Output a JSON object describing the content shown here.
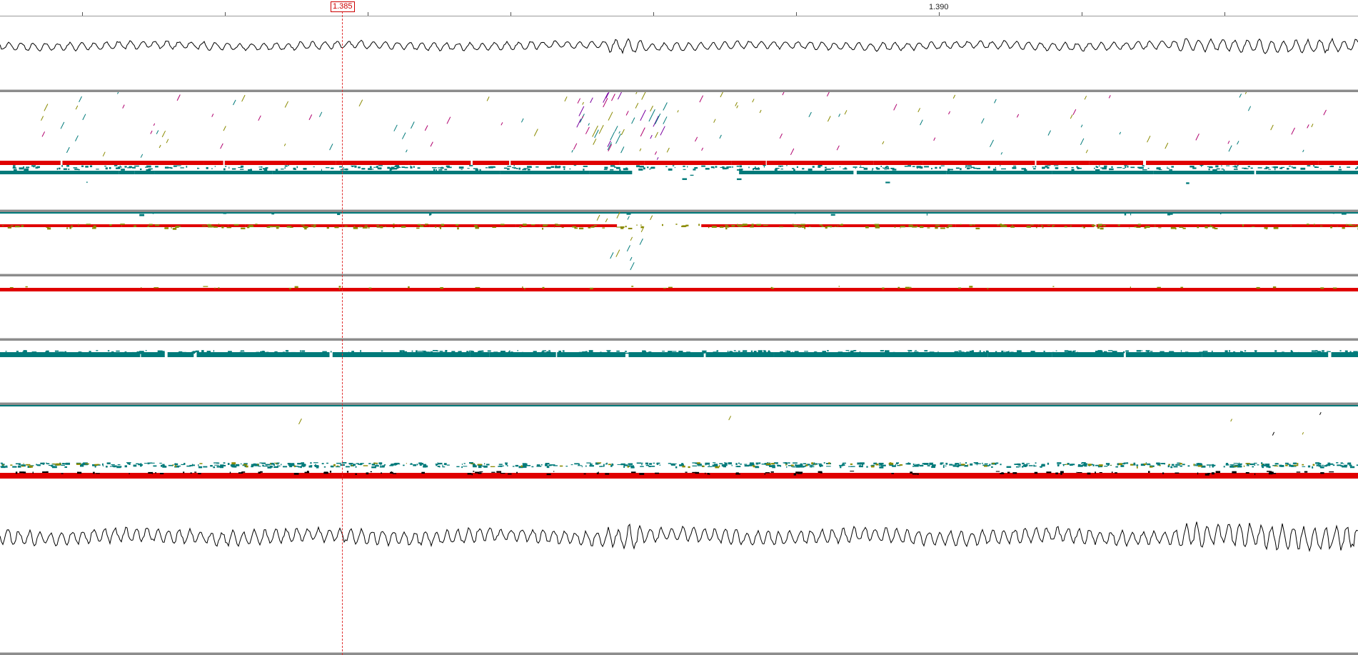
{
  "ruler": {
    "labels": [
      "1.390"
    ],
    "cursor_label": "1.385"
  },
  "colors": {
    "signal": "#000000",
    "forward_strand": "#e00000",
    "reverse_strand": "#007a7a",
    "olive_marks": "#8a8a00",
    "magenta_marks": "#b0006e",
    "purple_marks": "#7a00a0",
    "cursor": "#e03030",
    "separator": "#8c8c8c"
  },
  "tracks": [
    {
      "name": "waveform-top",
      "kind": "signal-trace"
    },
    {
      "name": "alignment-panel-1",
      "kind": "read-pileup"
    },
    {
      "name": "alignment-panel-2",
      "kind": "read-pileup"
    },
    {
      "name": "alignment-panel-3",
      "kind": "read-pileup"
    },
    {
      "name": "alignment-panel-4",
      "kind": "read-pileup"
    },
    {
      "name": "alignment-panel-5",
      "kind": "read-pileup"
    },
    {
      "name": "waveform-bottom",
      "kind": "signal-trace"
    }
  ]
}
